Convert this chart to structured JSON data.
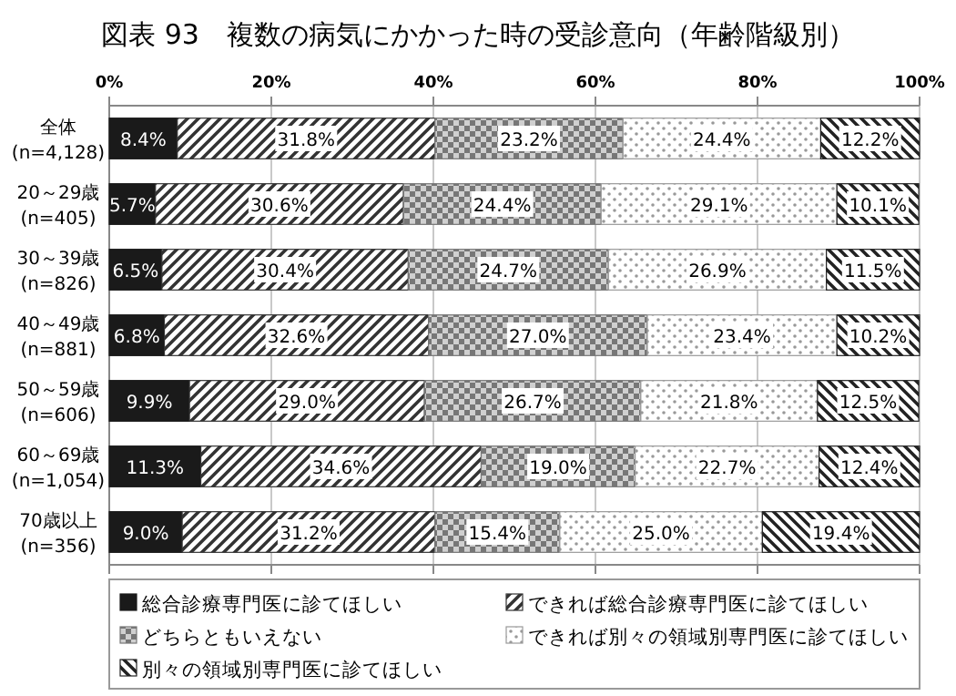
{
  "chart_data": {
    "type": "bar",
    "orientation": "horizontal",
    "stacked": true,
    "title": "図表 93　複数の病気にかかった時の受診意向（年齢階級別）",
    "categories": [
      "全体\n(n=4,128)",
      "20～29歳\n(n=405)",
      "30～39歳\n(n=826)",
      "40～49歳\n(n=881)",
      "50～59歳\n(n=606)",
      "60～69歳\n(n=1,054)",
      "70歳以上\n(n=356)"
    ],
    "xlim": [
      0,
      100
    ],
    "xticks": [
      {
        "value": 0,
        "label": "0%"
      },
      {
        "value": 20,
        "label": "20%"
      },
      {
        "value": 40,
        "label": "40%"
      },
      {
        "value": 60,
        "label": "60%"
      },
      {
        "value": 80,
        "label": "80%"
      },
      {
        "value": 100,
        "label": "100%"
      }
    ],
    "grid": "x",
    "legend": "bottom",
    "series": [
      {
        "name": "総合診療専門医に診てほしい",
        "color": "#1a1a1a",
        "values": [
          8.4,
          5.7,
          6.5,
          6.8,
          9.9,
          11.3,
          9.0
        ],
        "value_labels": [
          "8.4%",
          "5.7%",
          "6.5%",
          "6.8%",
          "9.9%",
          "11.3%",
          "9.0%"
        ]
      },
      {
        "name": "できれば総合診療専門医に診てほしい",
        "color": "#333333",
        "values": [
          31.8,
          30.6,
          30.4,
          32.6,
          29.0,
          34.6,
          31.2
        ],
        "value_labels": [
          "31.8%",
          "30.6%",
          "30.4%",
          "32.6%",
          "29.0%",
          "34.6%",
          "31.2%"
        ]
      },
      {
        "name": "どちらともいえない",
        "color": "#777777",
        "values": [
          23.2,
          24.4,
          24.7,
          27.0,
          26.7,
          19.0,
          15.4
        ],
        "value_labels": [
          "23.2%",
          "24.4%",
          "24.7%",
          "27.0%",
          "26.7%",
          "19.0%",
          "15.4%"
        ]
      },
      {
        "name": "できれば別々の領域別専門医に診てほしい",
        "color": "#999999",
        "values": [
          24.4,
          29.1,
          26.9,
          23.4,
          21.8,
          22.7,
          25.0
        ],
        "value_labels": [
          "24.4%",
          "29.1%",
          "26.9%",
          "23.4%",
          "21.8%",
          "22.7%",
          "25.0%"
        ]
      },
      {
        "name": "別々の領域別専門医に診てほしい",
        "color": "#222222",
        "values": [
          12.2,
          10.1,
          11.5,
          10.2,
          12.5,
          12.4,
          19.4
        ],
        "value_labels": [
          "12.2%",
          "10.1%",
          "11.5%",
          "10.2%",
          "12.5%",
          "12.4%",
          "19.4%"
        ]
      }
    ]
  }
}
